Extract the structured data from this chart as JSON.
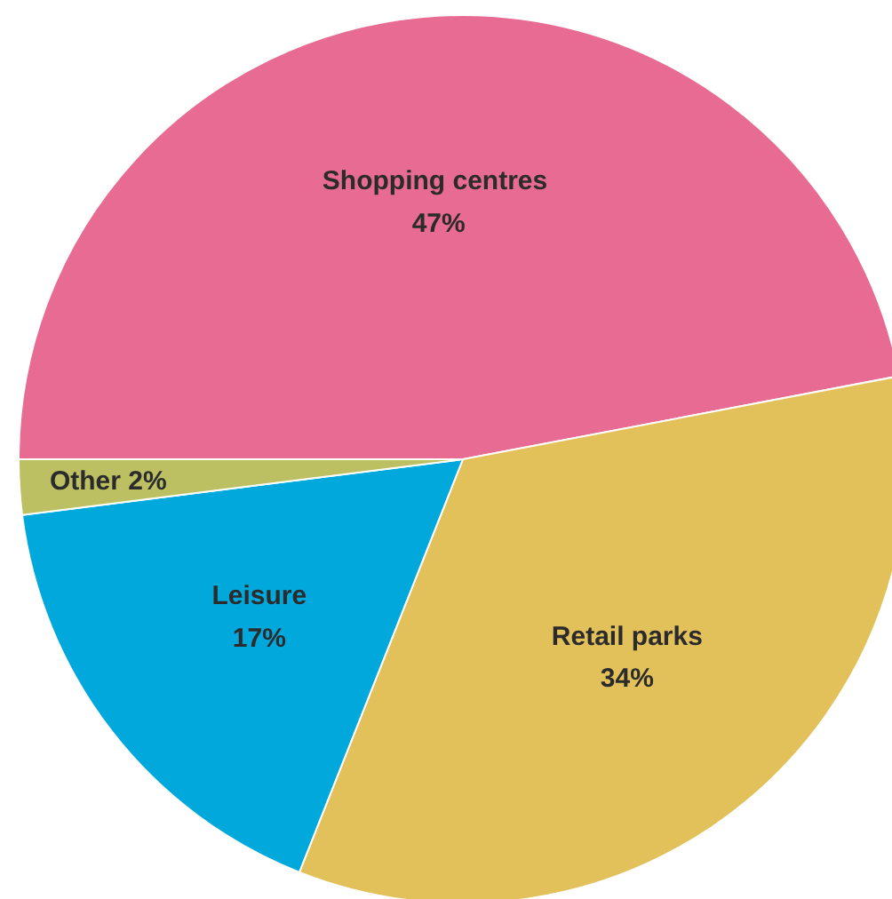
{
  "chart_data": {
    "type": "pie",
    "categories": [
      "Shopping  centres",
      "Retail parks",
      "Leisure",
      "Other"
    ],
    "values": [
      47,
      34,
      17,
      2
    ],
    "colors": [
      "#e86b93",
      "#e2c05a",
      "#00a8dc",
      "#bcc062"
    ],
    "value_labels": [
      "47%",
      "34%",
      "17%",
      "2%"
    ]
  }
}
